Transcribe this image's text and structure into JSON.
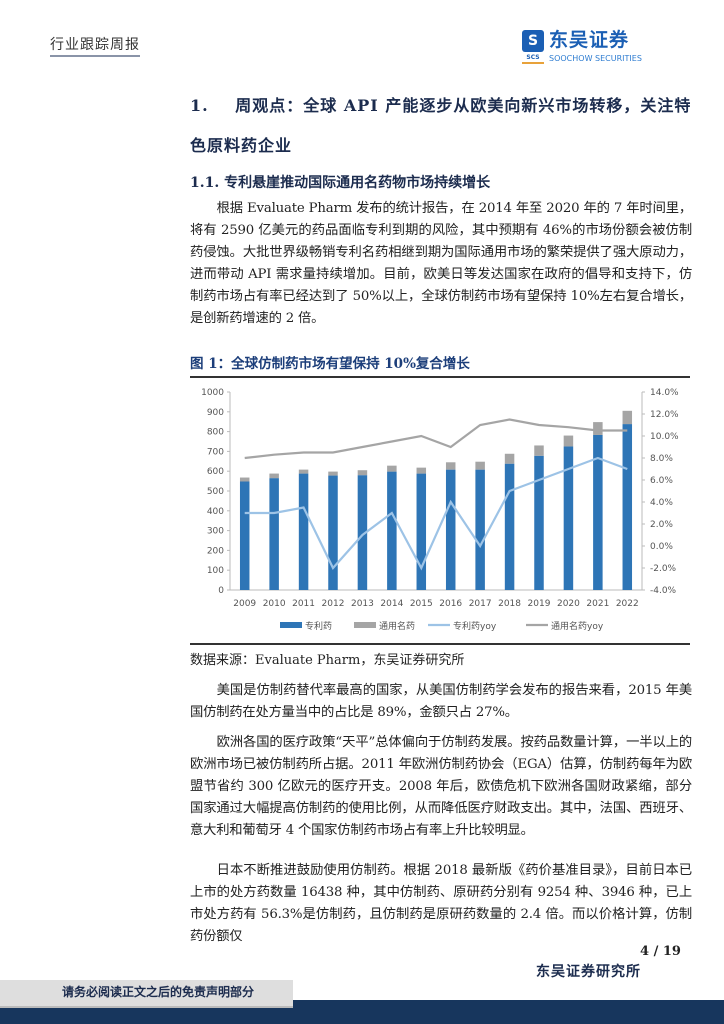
{
  "header": {
    "title": "行业跟踪周报",
    "logo_cn": "东吴证券",
    "logo_en": "SOOCHOW SECURITIES",
    "logo_abbr": "SCS"
  },
  "section1": {
    "number": "1.",
    "title_line1": "周观点：全球 API 产能逐步从欧美向新兴市场转移，关注特",
    "title_line2": "色原料药企业"
  },
  "section1_1": {
    "title": "1.1.  专利悬崖推动国际通用名药物市场持续增长"
  },
  "paragraphs": [
    "根据 Evaluate Pharm 发布的统计报告，在 2014 年至 2020 年的 7 年时间里，将有 2590 亿美元的药品面临专利到期的风险，其中预期有 46%的市场份额会被仿制药侵蚀。大批世界级畅销专利名药相继到期为国际通用市场的繁荣提供了强大原动力，进而带动 API 需求量持续增加。目前，欧美日等发达国家在政府的倡导和支持下，仿制药市场占有率已经达到了 50%以上，全球仿制药市场有望保持 10%左右复合增长，是创新药增速的 2 倍。",
    "美国是仿制药替代率最高的国家，从美国仿制药学会发布的报告来看，2015 年美国仿制药在处方量当中的占比是 89%，金额只占 27%。",
    "欧洲各国的医疗政策“天平”总体偏向于仿制药发展。按药品数量计算，一半以上的欧洲市场已被仿制药所占据。2011 年欧洲仿制药协会（EGA）估算，仿制药每年为欧盟节省约 300 亿欧元的医疗开支。2008 年后，欧债危机下欧洲各国财政紧缩，部分国家通过大幅提高仿制药的使用比例，从而降低医疗财政支出。其中，法国、西班牙、意大利和葡萄牙 4 个国家仿制药市场占有率上升比较明显。",
    "日本不断推进鼓励使用仿制药。根据 2018 最新版《药价基准目录》，目前日本已上市的处方药数量 16438 种，其中仿制药、原研药分别有 9254 种、3946 种，已上市处方药有 56.3%是仿制药，且仿制药是原研药数量的 2.4 倍。而以价格计算，仿制药份额仅"
  ],
  "figure": {
    "title": "图 1：全球仿制药市场有望保持 10%复合增长",
    "source": "数据来源：Evaluate Pharm，东吴证券研究所"
  },
  "chart_data": {
    "type": "bar",
    "categories": [
      "2009",
      "2010",
      "2011",
      "2012",
      "2013",
      "2014",
      "2015",
      "2016",
      "2017",
      "2018",
      "2019",
      "2020",
      "2021",
      "2022"
    ],
    "stacked": true,
    "series": [
      {
        "name": "专利药",
        "kind": "bar",
        "axis": "left",
        "color": "#2e75b6",
        "values": [
          548,
          565,
          588,
          578,
          580,
          598,
          588,
          608,
          608,
          638,
          678,
          725,
          783,
          838
        ]
      },
      {
        "name": "通用名药",
        "kind": "bar",
        "axis": "left",
        "color": "#a5a5a5",
        "values": [
          20,
          23,
          20,
          20,
          25,
          30,
          30,
          37,
          40,
          50,
          52,
          55,
          65,
          67
        ]
      },
      {
        "name": "专利药yoy",
        "kind": "line",
        "axis": "right",
        "color": "#9dc3e6",
        "values": [
          3.0,
          3.0,
          3.5,
          -2.0,
          1.0,
          3.0,
          -2.0,
          4.0,
          0.0,
          5.0,
          6.0,
          7.0,
          8.0,
          7.0
        ]
      },
      {
        "name": "通用名药yoy",
        "kind": "line",
        "axis": "right",
        "color": "#a5a5a5",
        "values": [
          8.0,
          8.3,
          8.5,
          8.5,
          9.0,
          9.5,
          10.0,
          9.0,
          11.0,
          11.5,
          11.0,
          10.8,
          10.5,
          10.5
        ]
      }
    ],
    "ylim": [
      0,
      1000
    ],
    "y_ticks": [
      "0",
      "100",
      "200",
      "300",
      "400",
      "500",
      "600",
      "700",
      "800",
      "900",
      "1000"
    ],
    "y2lim": [
      -4,
      14
    ],
    "y2_ticks": [
      "-4.0%",
      "-2.0%",
      "0.0%",
      "2.0%",
      "4.0%",
      "6.0%",
      "8.0%",
      "10.0%",
      "12.0%",
      "14.0%"
    ],
    "grid": false,
    "legend": "bottom"
  },
  "footer": {
    "page": "4 / 19",
    "org": "东吴证券研究所",
    "disclaimer": "请务必阅读正文之后的免责声明部分"
  }
}
